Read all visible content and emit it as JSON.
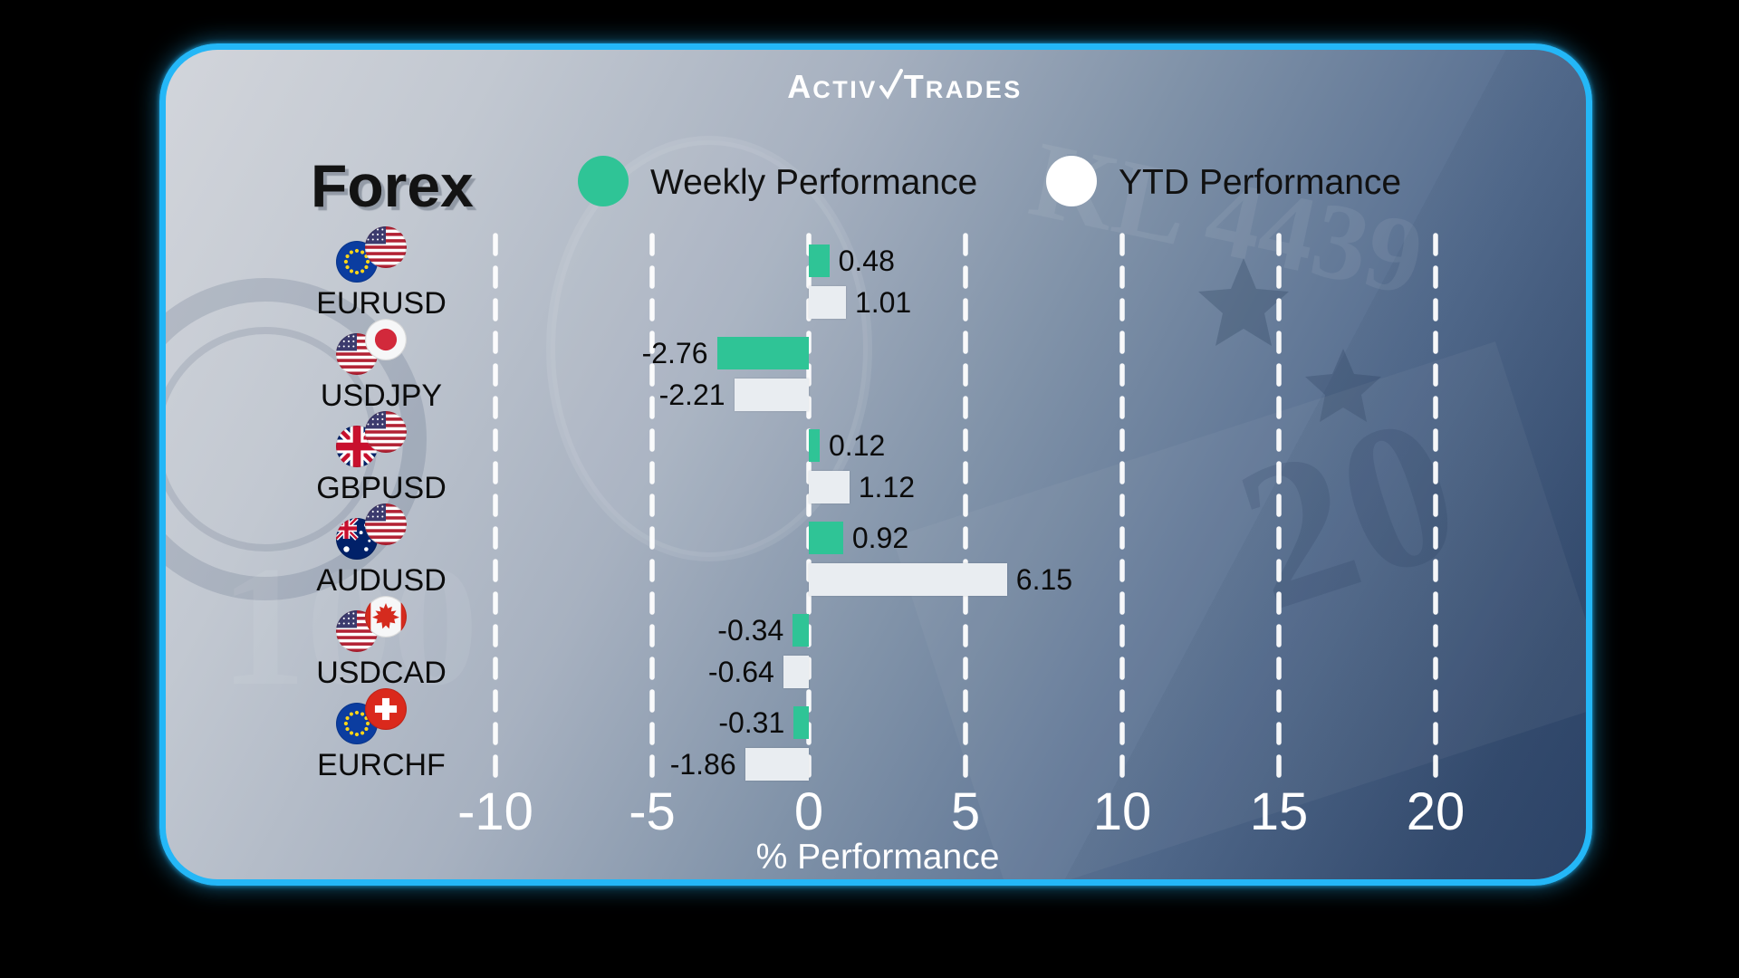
{
  "brand": {
    "name": "ActivTrades",
    "logo_part1_cap": "A",
    "logo_part1_rest": "CTIV",
    "logo_part2_cap": "T",
    "logo_part2_rest": "RADES"
  },
  "header": {
    "title": "Forex"
  },
  "legend": [
    {
      "label": "Weekly Performance",
      "color": "#2fc496"
    },
    {
      "label": "YTD Performance",
      "color": "#ffffff"
    }
  ],
  "chart_data": {
    "type": "bar",
    "orientation": "horizontal",
    "title": "Forex",
    "xlabel": "% Performance",
    "x_ticks": [
      -10,
      -5,
      0,
      5,
      10,
      15,
      20
    ],
    "xlim": [
      -12.5,
      23.5
    ],
    "grid": "vertical-dashed-white",
    "legend_position": "top",
    "categories": [
      "EURUSD",
      "USDJPY",
      "GBPUSD",
      "AUDUSD",
      "USDCAD",
      "EURCHF"
    ],
    "flag_pairs": [
      [
        "eu",
        "us"
      ],
      [
        "us",
        "jp"
      ],
      [
        "gb",
        "us"
      ],
      [
        "au",
        "us"
      ],
      [
        "us",
        "ca"
      ],
      [
        "eu",
        "ch"
      ]
    ],
    "series": [
      {
        "name": "Weekly Performance",
        "color": "#2fc496",
        "values": [
          0.48,
          -2.76,
          0.12,
          0.92,
          -0.34,
          -0.31
        ]
      },
      {
        "name": "YTD Performance",
        "color": "#e9edf1",
        "values": [
          1.01,
          -2.21,
          1.12,
          6.15,
          -0.64,
          -1.86
        ]
      }
    ],
    "value_label_decimals": 2
  }
}
